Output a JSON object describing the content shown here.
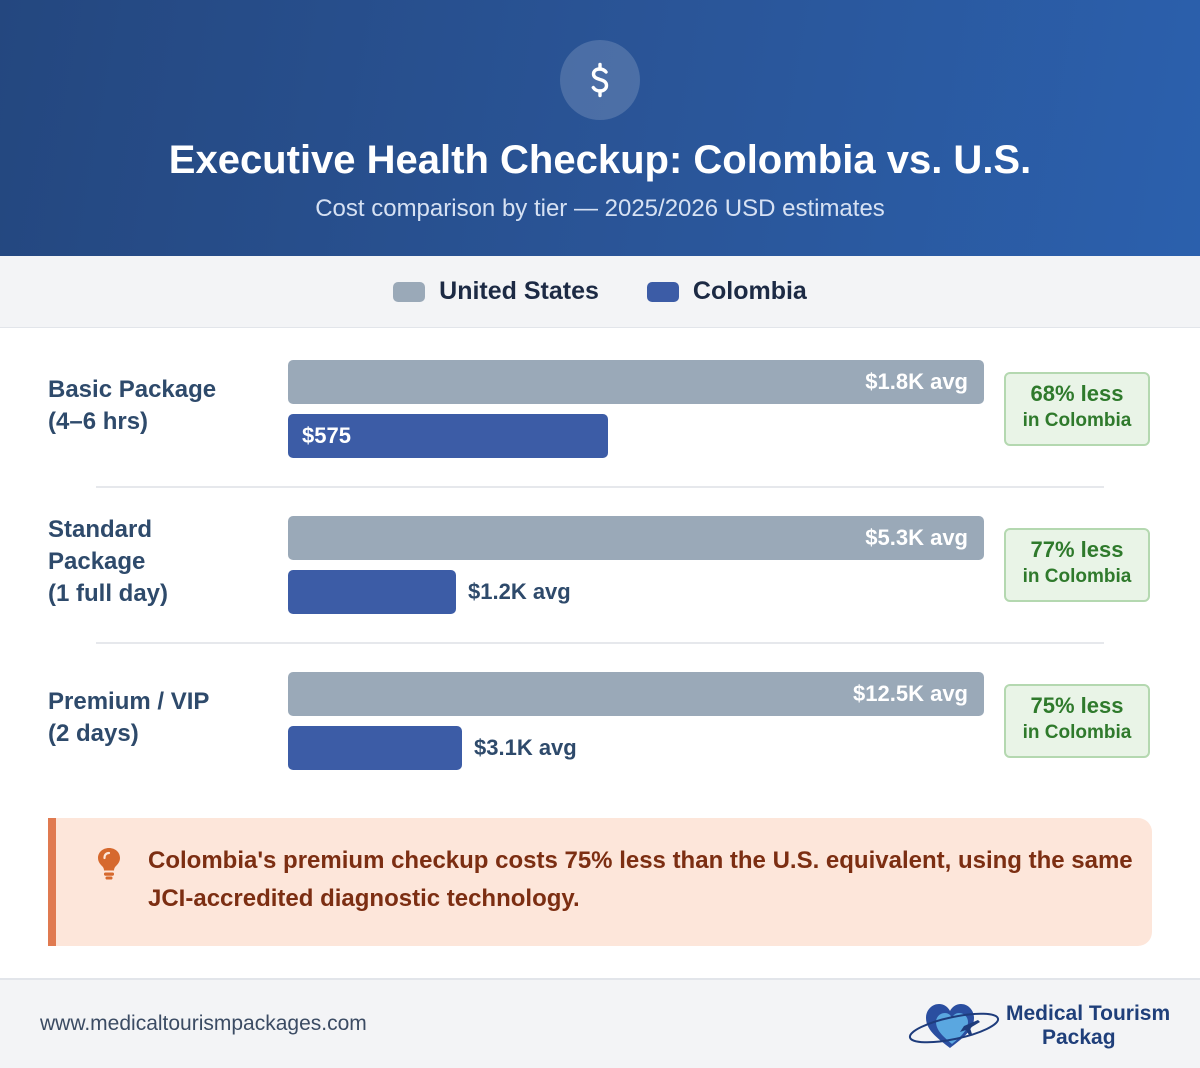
{
  "header": {
    "icon": "dollar-sign-icon",
    "title": "Executive Health Checkup: Colombia vs. U.S.",
    "subtitle": "Cost comparison by tier — 2025/2026 USD estimates"
  },
  "colors": {
    "us": "#9aa9b8",
    "colombia": "#3c5ca6",
    "saving_text": "#2f7a2c",
    "callout_accent": "#e07a50"
  },
  "chart_data": {
    "type": "bar",
    "orientation": "horizontal",
    "categories": [
      "Basic Package (4–6 hrs)",
      "Standard Package (1 full day)",
      "Premium / VIP (2 days)"
    ],
    "category_lines": [
      [
        "Basic Package",
        "(4–6 hrs)"
      ],
      [
        "Standard",
        "Package",
        "(1 full day)"
      ],
      [
        "Premium / VIP",
        "(2 days)"
      ]
    ],
    "series": [
      {
        "name": "United States",
        "values": [
          1800,
          5300,
          12500
        ],
        "labels": [
          "$1.8K avg",
          "$5.3K avg",
          "$12.5K avg"
        ]
      },
      {
        "name": "Colombia",
        "values": [
          575,
          1200,
          3100
        ],
        "labels": [
          "$575",
          "$1.2K avg",
          "$3.1K avg"
        ]
      }
    ],
    "savings": [
      {
        "pct": "68% less",
        "sub": "in Colombia"
      },
      {
        "pct": "77% less",
        "sub": "in Colombia"
      },
      {
        "pct": "75% less",
        "sub": "in Colombia"
      }
    ],
    "title": "Executive Health Checkup: Colombia vs. U.S.",
    "subtitle": "Cost comparison by tier — 2025/2026 USD estimates",
    "xlabel": "",
    "ylabel": "",
    "legend": "top-center",
    "grid": false
  },
  "callout": {
    "icon": "lightbulb-icon",
    "text": "Colombia's premium checkup costs 75% less than the U.S. equivalent, using the same JCI-accredited diagnostic technology."
  },
  "footer": {
    "url": "www.medicaltourismpackages.com",
    "logo_icon": "heart-plane-icon",
    "brand_line1": "Medical Tourism",
    "brand_line2": "Packag"
  }
}
